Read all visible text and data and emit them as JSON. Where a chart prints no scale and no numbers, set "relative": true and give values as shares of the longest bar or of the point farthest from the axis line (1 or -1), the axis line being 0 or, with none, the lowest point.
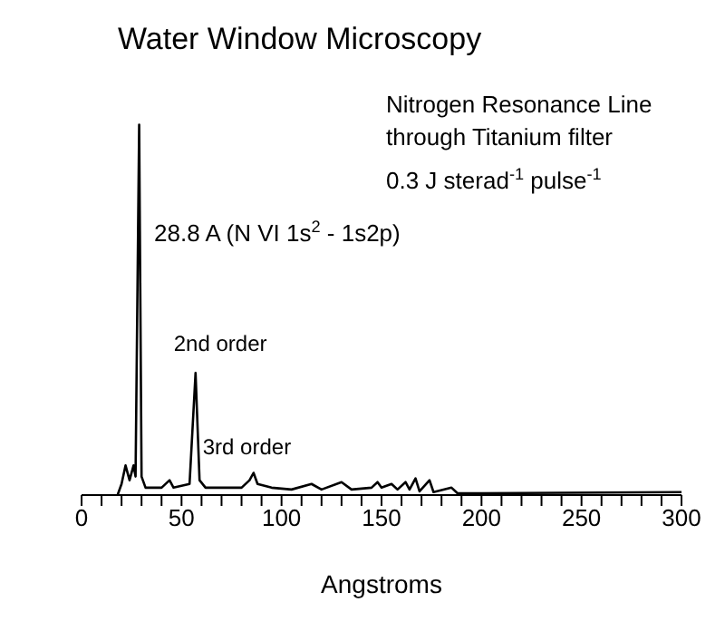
{
  "chart_data": {
    "type": "line",
    "title": "Water Window Microscopy",
    "xlabel": "Angstroms",
    "relative": true,
    "xlim": [
      0,
      300
    ],
    "xticks": [
      0,
      {
        "value": 10,
        "label": null
      },
      {
        "value": 20,
        "label": null
      },
      {
        "value": 30,
        "label": null
      },
      {
        "value": 40,
        "label": null
      },
      50,
      {
        "value": 60,
        "label": null
      },
      {
        "value": 70,
        "label": null
      },
      {
        "value": 80,
        "label": null
      },
      {
        "value": 90,
        "label": null
      },
      100,
      {
        "value": 110,
        "label": null
      },
      {
        "value": 120,
        "label": null
      },
      {
        "value": 130,
        "label": null
      },
      {
        "value": 140,
        "label": null
      },
      150,
      {
        "value": 160,
        "label": null
      },
      {
        "value": 170,
        "label": null
      },
      {
        "value": 180,
        "label": null
      },
      {
        "value": 190,
        "label": null
      },
      200,
      {
        "value": 210,
        "label": null
      },
      {
        "value": 220,
        "label": null
      },
      {
        "value": 230,
        "label": null
      },
      {
        "value": 240,
        "label": null
      },
      250,
      {
        "value": 260,
        "label": null
      },
      {
        "value": 270,
        "label": null
      },
      {
        "value": 280,
        "label": null
      },
      {
        "value": 290,
        "label": null
      },
      300
    ],
    "series": [
      {
        "color": "#000000",
        "x": [
          18,
          20,
          22,
          24,
          26,
          27,
          28.8,
          30,
          32,
          40,
          44,
          46,
          50,
          54,
          57,
          59,
          62,
          70,
          75,
          80,
          84,
          86,
          88,
          95,
          105,
          115,
          120,
          130,
          135,
          145,
          148,
          150,
          155,
          158,
          162,
          164,
          167,
          169,
          174,
          176,
          185,
          188,
          200,
          300
        ],
        "values": [
          0.0,
          0.03,
          0.08,
          0.04,
          0.08,
          0.05,
          1.0,
          0.05,
          0.02,
          0.02,
          0.04,
          0.02,
          0.025,
          0.03,
          0.33,
          0.04,
          0.02,
          0.02,
          0.02,
          0.02,
          0.04,
          0.06,
          0.03,
          0.02,
          0.015,
          0.03,
          0.015,
          0.035,
          0.015,
          0.02,
          0.035,
          0.02,
          0.03,
          0.015,
          0.035,
          0.015,
          0.045,
          0.01,
          0.04,
          0.008,
          0.02,
          0.005,
          0.005,
          0.008
        ]
      }
    ],
    "annotations": [
      "28.8 A (N VI 1s$^{2}$ - 1s2p)",
      {
        "text": "2nd order",
        "x": 57,
        "y": 0.33
      },
      {
        "text": "3rd order",
        "x": 86,
        "y": 0.06
      },
      "Nitrogen Resonance Line",
      "through Titanium filter",
      "0.3 J sterad$^{-1}$ pulse$^{-1}$"
    ]
  }
}
